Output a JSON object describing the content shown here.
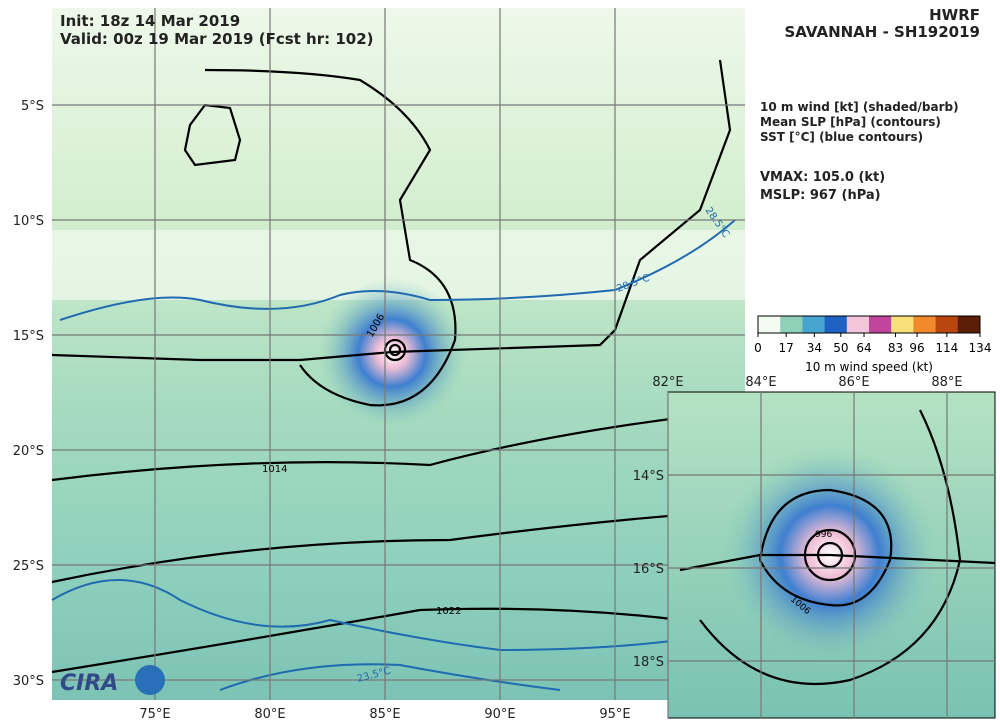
{
  "header": {
    "init": "Init:   18z 14 Mar 2019",
    "valid": "Valid: 00z 19 Mar 2019 (Fcst hr: 102)",
    "model": "HWRF",
    "storm": "SAVANNAH - SH192019"
  },
  "legend": {
    "lines": [
      "10 m wind [kt] (shaded/barb)",
      "Mean SLP [hPa] (contours)",
      "SST [°C] (blue contours)"
    ],
    "vmax": "VMAX: 105.0 (kt)",
    "mslp": "MSLP:  967 (hPa)"
  },
  "colorbar": {
    "range": [
      0,
      134
    ],
    "ticks": [
      0,
      17,
      34,
      50,
      64,
      83,
      96,
      114,
      134
    ],
    "label": "10 m wind speed (kt)",
    "colors": [
      "#f4fbf2",
      "#8fd1b8",
      "#46a6d0",
      "#1e63c4",
      "#f2c6d8",
      "#c1449e",
      "#f9e07a",
      "#f28a2c",
      "#b9450f",
      "#5a1d06"
    ]
  },
  "main_map": {
    "lon_ticks": [
      {
        "value": 75,
        "label": "75°E"
      },
      {
        "value": 80,
        "label": "80°E"
      },
      {
        "value": 85,
        "label": "85°E"
      },
      {
        "value": 90,
        "label": "90°E"
      },
      {
        "value": 95,
        "label": "95°E"
      }
    ],
    "lat_ticks": [
      {
        "value": -5,
        "label": "5°S"
      },
      {
        "value": -10,
        "label": "10°S"
      },
      {
        "value": -15,
        "label": "15°S"
      },
      {
        "value": -20,
        "label": "20°S"
      },
      {
        "value": -25,
        "label": "25°S"
      },
      {
        "value": -30,
        "label": "30°S"
      }
    ],
    "contour_labels": [
      "1006",
      "1014",
      "1022",
      "28.5°C",
      "28.5°C",
      "23.5°C"
    ]
  },
  "inset_map": {
    "lon_ticks": [
      {
        "value": 82,
        "label": "82°E"
      },
      {
        "value": 84,
        "label": "84°E"
      },
      {
        "value": 86,
        "label": "86°E"
      },
      {
        "value": 88,
        "label": "88°E"
      }
    ],
    "lat_ticks": [
      {
        "value": -14,
        "label": "14°S"
      },
      {
        "value": -16,
        "label": "16°S"
      },
      {
        "value": -18,
        "label": "18°S"
      }
    ],
    "contour_labels": [
      "996",
      "1006"
    ]
  },
  "logo": "CIRA"
}
